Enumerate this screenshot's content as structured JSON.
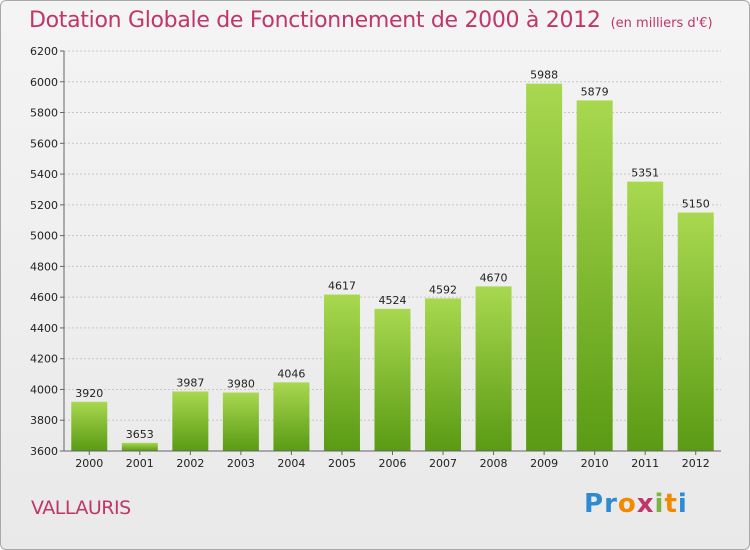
{
  "title": "Dotation Globale de Fonctionnement de 2000 à 2012",
  "unit_note": "(en milliers d'€)",
  "city": "VALLAURIS",
  "logo": {
    "letters": [
      "P",
      "r",
      "o",
      "x",
      "i",
      "t",
      "i"
    ],
    "colors": [
      "#2e8bd1",
      "#2e8bd1",
      "#f08a00",
      "#c0356a",
      "#7cb342",
      "#f08a00",
      "#2e8bd1"
    ]
  },
  "colors": {
    "bar_top": "#a8d84f",
    "bar_bottom": "#5a9a14",
    "accent": "#c0356a"
  },
  "chart_data": {
    "type": "bar",
    "categories": [
      "2000",
      "2001",
      "2002",
      "2003",
      "2004",
      "2005",
      "2006",
      "2007",
      "2008",
      "2009",
      "2010",
      "2011",
      "2012"
    ],
    "values": [
      3920,
      3653,
      3987,
      3980,
      4046,
      4617,
      4524,
      4592,
      4670,
      5988,
      5879,
      5351,
      5150
    ],
    "ylim": [
      3600,
      6200
    ],
    "yticks": [
      3600,
      3800,
      4000,
      4200,
      4400,
      4600,
      4800,
      5000,
      5200,
      5400,
      5600,
      5800,
      6000,
      6200
    ],
    "grid": true
  }
}
